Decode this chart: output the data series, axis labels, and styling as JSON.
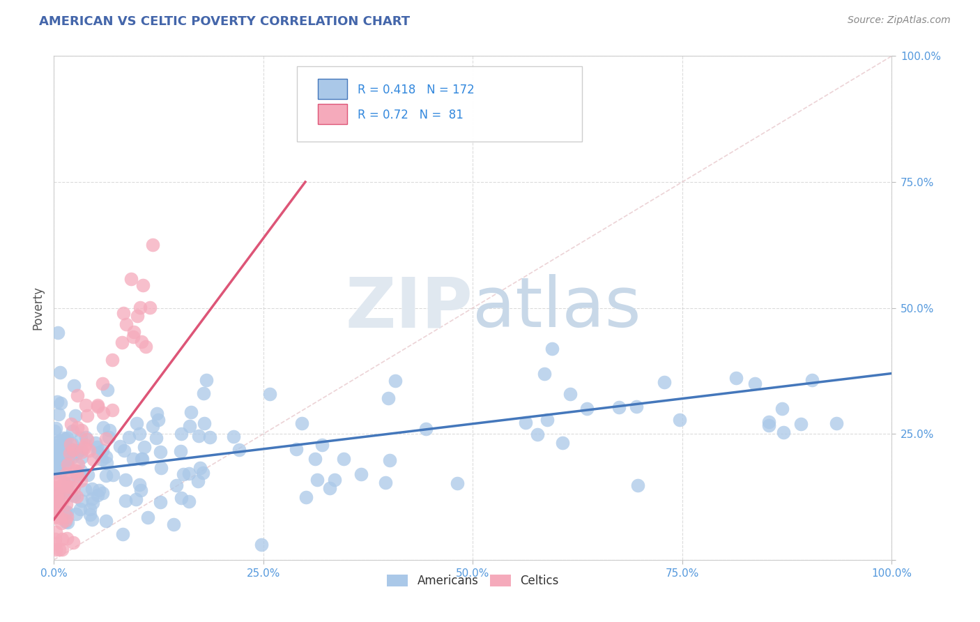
{
  "title": "AMERICAN VS CELTIC POVERTY CORRELATION CHART",
  "source": "Source: ZipAtlas.com",
  "ylabel": "Poverty",
  "americans_R": 0.418,
  "americans_N": 172,
  "celtics_R": 0.72,
  "celtics_N": 81,
  "americans_color": "#aac8e8",
  "celtics_color": "#f5aabb",
  "americans_line_color": "#4477bb",
  "celtics_line_color": "#dd5577",
  "title_color": "#4466aa",
  "legend_color": "#3388dd",
  "watermark_color": "#e0e8f0",
  "background_color": "#ffffff",
  "grid_color": "#cccccc",
  "diag_color": "#e8c8cc",
  "tick_color": "#5599dd"
}
